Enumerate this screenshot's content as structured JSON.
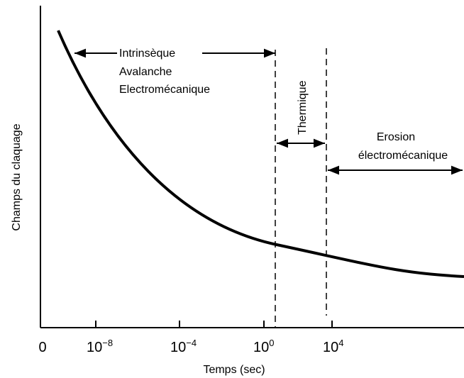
{
  "axes": {
    "y_label": "Champs du claquage",
    "x_label": "Temps (sec)",
    "x_ticks": [
      {
        "base": "0"
      },
      {
        "base": "10",
        "exp": "−8"
      },
      {
        "base": "10",
        "exp": "−4"
      },
      {
        "base": "10",
        "exp": "0"
      },
      {
        "base": "10",
        "exp": "4"
      }
    ]
  },
  "regions": [
    {
      "lines": [
        "Intrinsèque",
        "Avalanche",
        "Electromécanique"
      ]
    },
    {
      "lines": [
        "Thermique"
      ]
    },
    {
      "lines": [
        "Erosion",
        "électromécanique"
      ]
    }
  ]
}
